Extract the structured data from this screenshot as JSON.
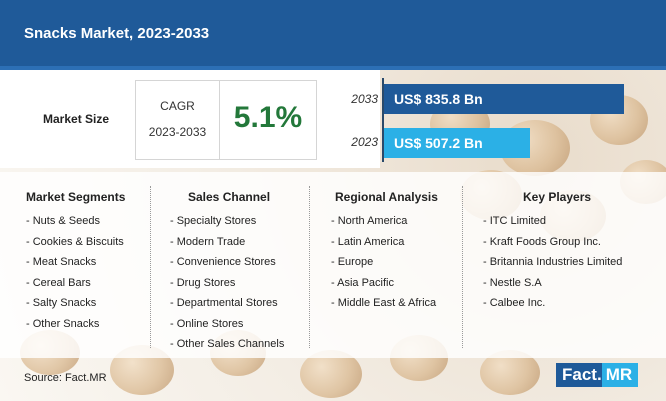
{
  "header": {
    "title": "Snacks Market, 2023-2033"
  },
  "market_size": {
    "label": "Market Size",
    "cagr_label": "CAGR",
    "cagr_period": "2023-2033",
    "cagr_value": "5.1%"
  },
  "chart_data": {
    "type": "bar",
    "orientation": "horizontal",
    "categories": [
      "2033",
      "2023"
    ],
    "values": [
      835.8,
      507.2
    ],
    "value_labels": [
      "US$ 835.8 Bn",
      "US$ 507.2 Bn"
    ],
    "unit": "US$ Bn",
    "colors": [
      "#1f5a99",
      "#2bb0e6"
    ]
  },
  "columns": [
    {
      "heading": "Market Segments",
      "items": [
        "- Nuts & Seeds",
        "- Cookies & Biscuits",
        "- Meat Snacks",
        "- Cereal Bars",
        "- Salty Snacks",
        "- Other Snacks"
      ]
    },
    {
      "heading": "Sales Channel",
      "items": [
        "- Specialty Stores",
        "- Modern Trade",
        "- Convenience Stores",
        "- Drug Stores",
        "- Departmental Stores",
        "- Online Stores",
        "- Other Sales Channels"
      ]
    },
    {
      "heading": "Regional Analysis",
      "items": [
        "- North America",
        "- Latin America",
        "- Europe",
        "- Asia Pacific",
        "- Middle East & Africa"
      ]
    },
    {
      "heading": "Key Players",
      "items": [
        "- ITC Limited",
        "- Kraft Foods Group Inc.",
        "- Britannia Industries Limited",
        "- Nestle S.A",
        "- Calbee Inc."
      ]
    }
  ],
  "footer": {
    "source": "Source: Fact.MR",
    "logo_fact": "Fact.",
    "logo_mr": "MR"
  },
  "colors": {
    "header": "#1f5a99",
    "bar_2033": "#1f5a99",
    "bar_2023": "#2bb0e6",
    "cagr": "#23783a"
  }
}
